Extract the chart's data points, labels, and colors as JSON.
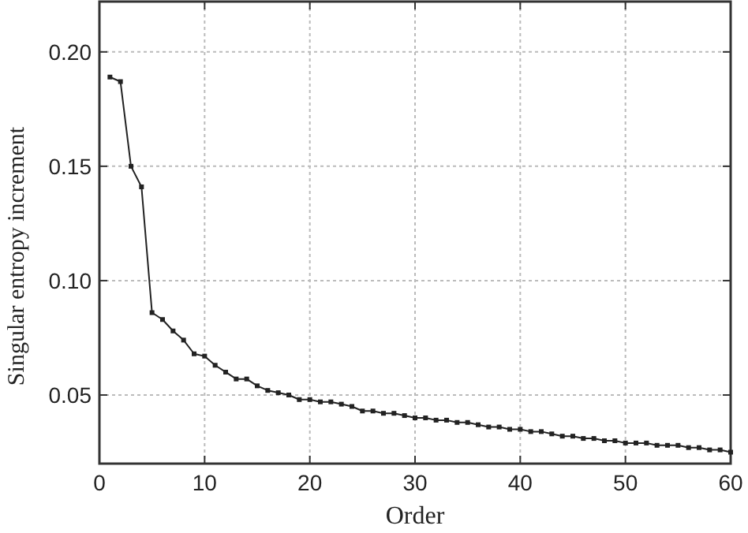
{
  "chart_data": {
    "type": "line",
    "xlabel": "Order",
    "ylabel": "Singular entropy increment",
    "x": [
      1,
      2,
      3,
      4,
      5,
      6,
      7,
      8,
      9,
      10,
      11,
      12,
      13,
      14,
      15,
      16,
      17,
      18,
      19,
      20,
      21,
      22,
      23,
      24,
      25,
      26,
      27,
      28,
      29,
      30,
      31,
      32,
      33,
      34,
      35,
      36,
      37,
      38,
      39,
      40,
      41,
      42,
      43,
      44,
      45,
      46,
      47,
      48,
      49,
      50,
      51,
      52,
      53,
      54,
      55,
      56,
      57,
      58,
      59,
      60
    ],
    "series": [
      {
        "color": "#222222",
        "values": [
          0.189,
          0.187,
          0.15,
          0.141,
          0.086,
          0.083,
          0.078,
          0.074,
          0.068,
          0.067,
          0.063,
          0.06,
          0.057,
          0.057,
          0.054,
          0.052,
          0.051,
          0.05,
          0.048,
          0.048,
          0.047,
          0.047,
          0.046,
          0.045,
          0.043,
          0.043,
          0.042,
          0.042,
          0.041,
          0.04,
          0.04,
          0.039,
          0.039,
          0.038,
          0.038,
          0.037,
          0.036,
          0.036,
          0.035,
          0.035,
          0.034,
          0.034,
          0.033,
          0.032,
          0.032,
          0.031,
          0.031,
          0.03,
          0.03,
          0.029,
          0.029,
          0.029,
          0.028,
          0.028,
          0.028,
          0.027,
          0.027,
          0.026,
          0.026,
          0.025
        ]
      }
    ],
    "xlim": [
      0,
      60
    ],
    "xticks": [
      0,
      10,
      20,
      30,
      40,
      50,
      60
    ],
    "ylim": [
      0.02,
      0.222
    ],
    "yticks": [
      {
        "value": 0.05,
        "label": "0.05"
      },
      {
        "value": 0.1,
        "label": "0.10"
      },
      {
        "value": 0.15,
        "label": "0.15"
      },
      {
        "value": 0.2,
        "label": "0.20"
      }
    ],
    "grid": true,
    "marker": "square",
    "line_style": "solid"
  }
}
